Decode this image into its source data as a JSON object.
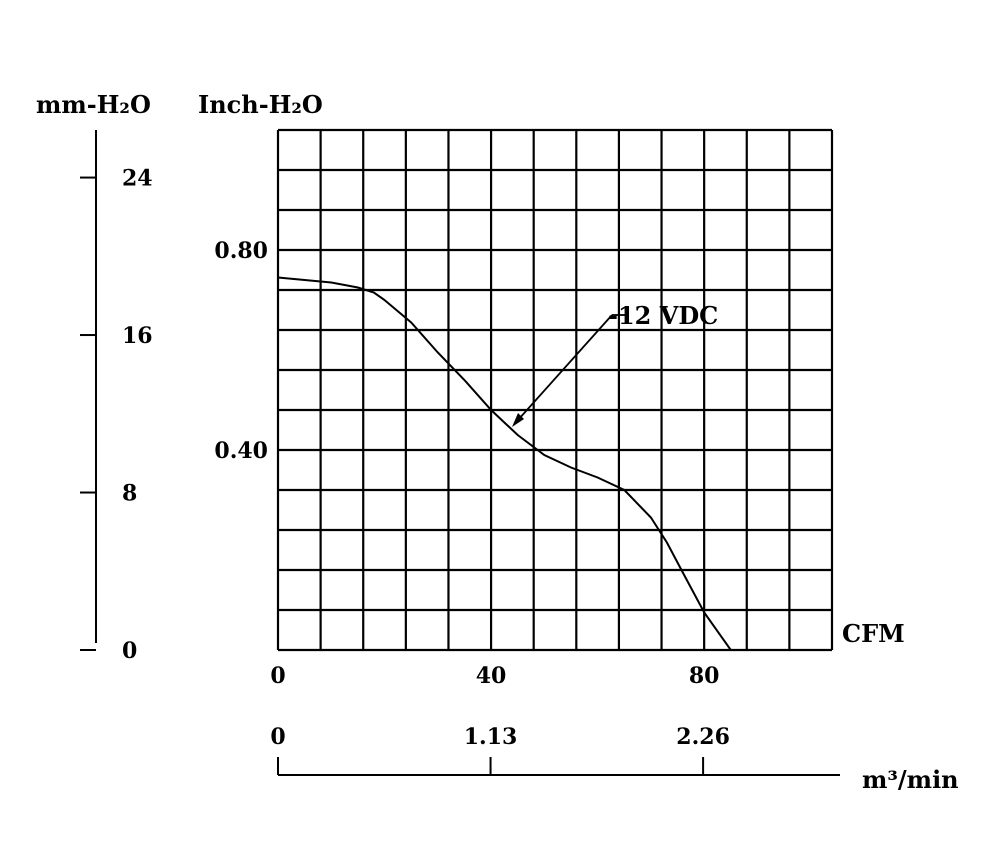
{
  "chart_data": {
    "type": "line",
    "xlabel": "CFM",
    "ylabel": "Inch-H₂O",
    "secondary_ylabel": "mm-H₂O",
    "secondary_xlabel": "m³/min",
    "xlim": [
      0,
      104
    ],
    "ylim": [
      0,
      1.04
    ],
    "x_ticks": [
      "0",
      "40",
      "80"
    ],
    "y_ticks": [
      "0.40",
      "0.80"
    ],
    "mm_ticks": [
      "0",
      "8",
      "16",
      "24"
    ],
    "m3_ticks": [
      "0",
      "1.13",
      "2.26"
    ],
    "grid": true,
    "series": [
      {
        "name": "12 VDC",
        "x": [
          0,
          5,
          10,
          15,
          18,
          20,
          25,
          30,
          35,
          40,
          45,
          50,
          55,
          60,
          65,
          70,
          73,
          76,
          80,
          85
        ],
        "y": [
          0.745,
          0.74,
          0.735,
          0.725,
          0.715,
          0.7,
          0.655,
          0.595,
          0.54,
          0.48,
          0.43,
          0.39,
          0.365,
          0.345,
          0.32,
          0.265,
          0.215,
          0.155,
          0.075,
          0.0
        ]
      }
    ]
  }
}
